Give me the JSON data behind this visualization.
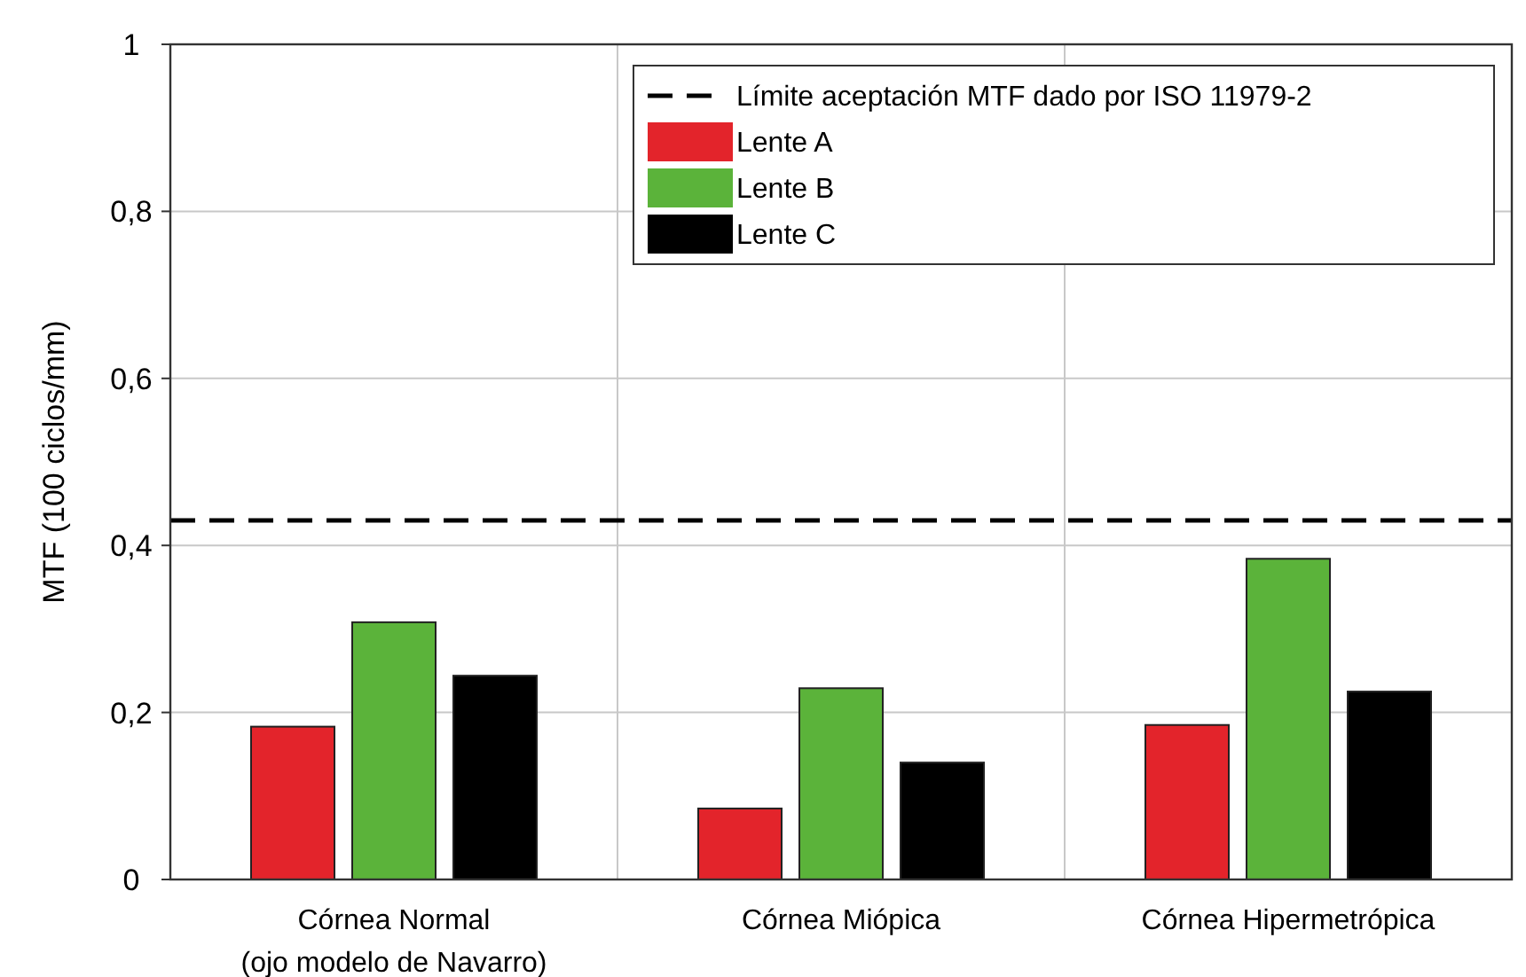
{
  "chart_data": {
    "type": "bar",
    "ylabel": "MTF (100 ciclos/mm)",
    "categories": [
      "Córnea Normal\n(ojo modelo de Navarro)",
      "Córnea Miópica",
      "Córnea Hipermetrópica"
    ],
    "series": [
      {
        "name": "Lente A",
        "color": "#e3242b",
        "values": [
          0.183,
          0.085,
          0.185
        ]
      },
      {
        "name": "Lente B",
        "color": "#5bb33a",
        "values": [
          0.308,
          0.229,
          0.384
        ]
      },
      {
        "name": "Lente C",
        "color": "#000000",
        "values": [
          0.244,
          0.14,
          0.225
        ]
      }
    ],
    "ylim": [
      0,
      1
    ],
    "yticks": [
      0,
      {
        "value": 0.2,
        "label": "0,2"
      },
      {
        "value": 0.4,
        "label": "0,4"
      },
      {
        "value": 0.6,
        "label": "0,6"
      },
      {
        "value": 0.8,
        "label": "0,8"
      },
      1
    ],
    "ref_lines": [
      {
        "axis": "y",
        "value": 0.43,
        "label": "Límite aceptación MTF dado por ISO 11979-2",
        "color": "#000000",
        "line_style": "dashed"
      }
    ],
    "grid": true,
    "legend": "top right"
  }
}
